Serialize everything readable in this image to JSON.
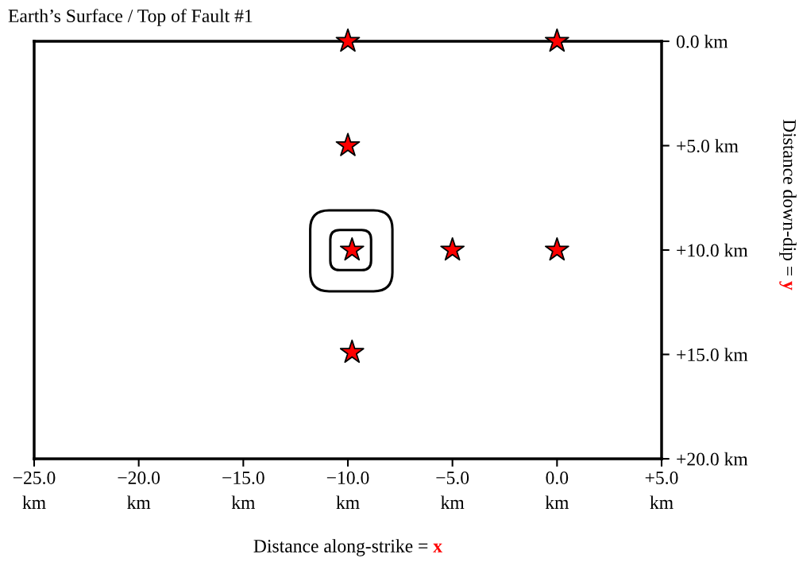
{
  "chart_data": {
    "type": "scatter",
    "title": "Earth’s Surface / Top of Fault #1",
    "xlabel": "Distance along-strike = x",
    "ylabel": "Distance down-dip = y",
    "x": [
      -10.0,
      0.0,
      -10.0,
      -9.8,
      -5.0,
      0.0,
      -9.8
    ],
    "values": [
      0.0,
      0.0,
      5.0,
      10.0,
      10.0,
      10.0,
      14.9
    ],
    "color": "#ff0000",
    "marker": "star",
    "xlim": [
      -25,
      5
    ],
    "ylim": [
      20,
      0
    ],
    "xticks": [
      {
        "value": -25,
        "label": "−25.0\nkm"
      },
      {
        "value": -20,
        "label": "−20.0\nkm"
      },
      {
        "value": -15,
        "label": "−15.0\nkm"
      },
      {
        "value": -10,
        "label": "−10.0\nkm"
      },
      {
        "value": -5,
        "label": "−5.0\nkm"
      },
      {
        "value": 0,
        "label": "0.0\nkm"
      },
      {
        "value": 5,
        "label": "+5.0\nkm"
      }
    ],
    "yticks": [
      {
        "value": 0,
        "label": "0.0 km"
      },
      {
        "value": 5,
        "label": "+5.0 km"
      },
      {
        "value": 10,
        "label": "+10.0 km"
      },
      {
        "value": 15,
        "label": "+15.0 km"
      },
      {
        "value": 20,
        "label": "+20.0 km"
      }
    ],
    "grid": false,
    "legend": false
  }
}
